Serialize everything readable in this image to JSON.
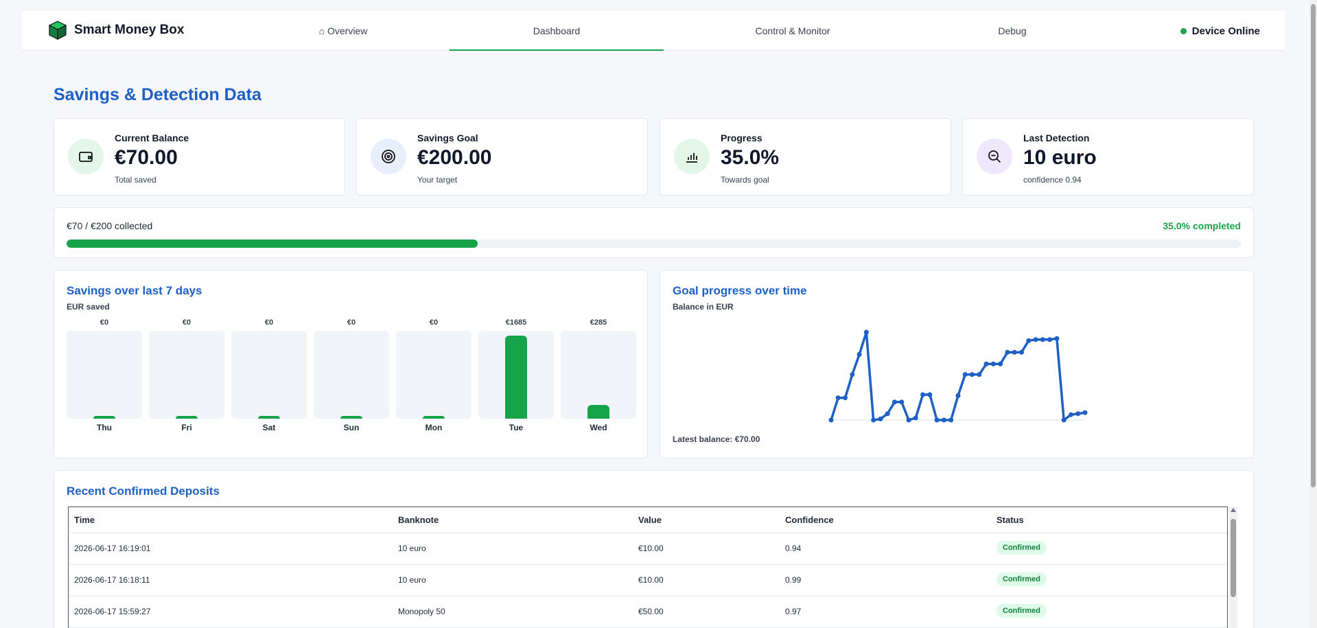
{
  "brand": {
    "name": "Smart Money Box"
  },
  "nav": [
    {
      "label": "⌂ Overview"
    },
    {
      "label": "Dashboard"
    },
    {
      "label": "Control & Monitor"
    },
    {
      "label": "Debug"
    }
  ],
  "device_status": "Device Online",
  "page_title": "Savings & Detection Data",
  "stats": [
    {
      "label": "Current Balance",
      "value": "€70.00",
      "sub": "Total saved",
      "icon": "wallet-icon",
      "icon_bg": "#e4f6ea"
    },
    {
      "label": "Savings Goal",
      "value": "€200.00",
      "sub": "Your target",
      "icon": "target-icon",
      "icon_bg": "#e6effb"
    },
    {
      "label": "Progress",
      "value": "35.0%",
      "sub": "Towards goal",
      "icon": "bar-chart-icon",
      "icon_bg": "#e4f6ea"
    },
    {
      "label": "Last Detection",
      "value": "10 euro",
      "sub": "confidence 0.94",
      "icon": "zoom-out-icon",
      "icon_bg": "#efe7fb"
    }
  ],
  "progress": {
    "left": "€70 / €200 collected",
    "right": "35.0% completed",
    "fraction": 0.35
  },
  "bar_panel": {
    "title": "Savings over last 7 days",
    "subtitle": "EUR saved",
    "chart_data": {
      "type": "bar",
      "categories": [
        "Thu",
        "Fri",
        "Sat",
        "Sun",
        "Mon",
        "Tue",
        "Wed"
      ],
      "values": [
        0,
        0,
        0,
        0,
        0,
        1685,
        285
      ],
      "value_labels": [
        "€0",
        "€0",
        "€0",
        "€0",
        "€0",
        "€1685",
        "€285"
      ]
    }
  },
  "line_panel": {
    "title": "Goal progress over time",
    "subtitle": "Balance in EUR",
    "latest": "Latest balance: €70.00",
    "chart_data": {
      "type": "line",
      "values": [
        0,
        210,
        210,
        430,
        620,
        830,
        0,
        10,
        60,
        170,
        170,
        0,
        20,
        240,
        240,
        0,
        0,
        0,
        230,
        430,
        430,
        430,
        530,
        530,
        530,
        640,
        640,
        640,
        750,
        760,
        760,
        760,
        770,
        0,
        50,
        60,
        70
      ]
    }
  },
  "deposits": {
    "title": "Recent Confirmed Deposits",
    "columns": [
      "Time",
      "Banknote",
      "Value",
      "Confidence",
      "Status"
    ],
    "rows": [
      {
        "time": "2026-06-17 16:19:01",
        "banknote": "10 euro",
        "value": "€10.00",
        "confidence": "0.94",
        "status": "Confirmed"
      },
      {
        "time": "2026-06-17 16:18:11",
        "banknote": "10 euro",
        "value": "€10.00",
        "confidence": "0.99",
        "status": "Confirmed"
      },
      {
        "time": "2026-06-17 15:59:27",
        "banknote": "Monopoly 50",
        "value": "€50.00",
        "confidence": "0.97",
        "status": "Confirmed"
      }
    ]
  }
}
